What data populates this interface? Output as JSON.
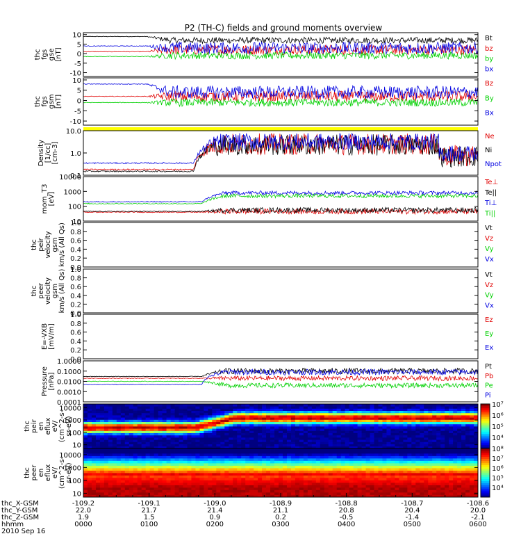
{
  "title": "P2 (TH-C) fields and ground moments overview",
  "colors": {
    "black": "#000000",
    "red": "#e00000",
    "green": "#00d000",
    "blue": "#0000e0",
    "yellow": "#ffff00"
  },
  "chart_data": [
    {
      "type": "line",
      "panel": "fgs-gse",
      "ylabel": [
        "thc",
        "fgs",
        "gse",
        "[nT]"
      ],
      "ylim": [
        -12,
        11
      ],
      "y_ticks": [
        "10",
        "5",
        "0",
        "-5",
        "-10"
      ],
      "y_tick_values": [
        10,
        5,
        0,
        -5,
        -10
      ],
      "series": [
        {
          "name": "Bt",
          "color": "black",
          "start": 9,
          "end": 7,
          "transition": 0.16,
          "noise": 3.0
        },
        {
          "name": "bz",
          "color": "red",
          "start": 1,
          "end": 2,
          "transition": 0.16,
          "noise": 5.0
        },
        {
          "name": "by",
          "color": "green",
          "start": -1.5,
          "end": -1,
          "transition": 0.16,
          "noise": 3.5
        },
        {
          "name": "bx",
          "color": "blue",
          "start": 4,
          "end": 3,
          "transition": 0.16,
          "noise": 6.0
        }
      ]
    },
    {
      "type": "line",
      "panel": "fgs-gsm",
      "ylabel": [
        "thc",
        "fgs",
        "gsm",
        "[nT]"
      ],
      "ylim": [
        -12,
        11
      ],
      "y_ticks": [
        "10",
        "5",
        "0",
        "-5",
        "-10"
      ],
      "y_tick_values": [
        10,
        5,
        0,
        -5,
        -10
      ],
      "series": [
        {
          "name": "Bz",
          "color": "red",
          "start": 2,
          "end": 2,
          "transition": 0.16,
          "noise": 5.0
        },
        {
          "name": "By",
          "color": "green",
          "start": -1,
          "end": -1,
          "transition": 0.16,
          "noise": 3.5
        },
        {
          "name": "Bx",
          "color": "blue",
          "start": 8,
          "end": 4,
          "transition": 0.16,
          "noise": 6.0
        }
      ]
    },
    {
      "type": "line",
      "panel": "density",
      "ylabel": [
        "Density",
        "[1/cc]",
        "[cm-3]"
      ],
      "scale": "log",
      "ylim": [
        0.1,
        10
      ],
      "y_ticks": [
        "10.0",
        "1.0",
        "0.1"
      ],
      "y_tick_values": [
        10,
        1,
        0.1
      ],
      "series": [
        {
          "name": "Ne",
          "color": "red",
          "start": 0.18,
          "end": 2.5,
          "transition": 0.28,
          "noise": 0.45
        },
        {
          "name": "Ni",
          "color": "black",
          "start": 0.15,
          "end": 2.3,
          "transition": 0.28,
          "noise": 0.45
        },
        {
          "name": "Npot",
          "color": "blue",
          "start": 0.35,
          "end": 3.2,
          "transition": 0.28,
          "noise": 0.35
        }
      ]
    },
    {
      "type": "line",
      "panel": "temperature",
      "ylabel": [
        "mom_T3",
        "[eV]"
      ],
      "scale": "log",
      "ylim": [
        10,
        10000
      ],
      "y_ticks": [
        "10000",
        "1000",
        "100",
        "10"
      ],
      "y_tick_values": [
        10000,
        1000,
        100,
        10
      ],
      "series": [
        {
          "name": "Te⊥",
          "color": "red",
          "start": 40,
          "end": 45,
          "transition": 0.3,
          "noise": 0.15
        },
        {
          "name": "Te||",
          "color": "black",
          "start": 45,
          "end": 55,
          "transition": 0.3,
          "noise": 0.15
        },
        {
          "name": "Ti⊥",
          "color": "blue",
          "start": 200,
          "end": 800,
          "transition": 0.3,
          "noise": 0.1
        },
        {
          "name": "Ti||",
          "color": "green",
          "start": 150,
          "end": 500,
          "transition": 0.3,
          "noise": 0.1
        }
      ]
    },
    {
      "type": "line",
      "panel": "peir-velocity",
      "ylabel": [
        "thc",
        "peir",
        "velocity",
        "gsm",
        "km/s (All Qs)"
      ],
      "ylim": [
        0,
        1
      ],
      "y_ticks": [
        "1.0",
        "0.8",
        "0.6",
        "0.4",
        "0.2",
        "0.0"
      ],
      "y_tick_values": [
        1,
        0.8,
        0.6,
        0.4,
        0.2,
        0
      ],
      "series": [
        {
          "name": "Vt",
          "color": "black"
        },
        {
          "name": "Vz",
          "color": "red"
        },
        {
          "name": "Vy",
          "color": "green"
        },
        {
          "name": "Vx",
          "color": "blue"
        }
      ]
    },
    {
      "type": "line",
      "panel": "peer-velocity",
      "ylabel": [
        "thc",
        "peer",
        "velocity",
        "gsm",
        "km/s (All Qs)"
      ],
      "ylim": [
        0,
        1
      ],
      "y_ticks": [
        "1.0",
        "0.8",
        "0.6",
        "0.4",
        "0.2",
        "0.0"
      ],
      "y_tick_values": [
        1,
        0.8,
        0.6,
        0.4,
        0.2,
        0
      ],
      "series": [
        {
          "name": "Vt",
          "color": "black"
        },
        {
          "name": "Vz",
          "color": "red"
        },
        {
          "name": "Vy",
          "color": "green"
        },
        {
          "name": "Vx",
          "color": "blue"
        }
      ]
    },
    {
      "type": "line",
      "panel": "e-field",
      "ylabel": [
        "E=-VXB",
        "[mV/m]"
      ],
      "ylim": [
        0,
        1
      ],
      "y_ticks": [
        "1.0",
        "0.8",
        "0.6",
        "0.4",
        "0.2",
        "0.0"
      ],
      "y_tick_values": [
        1,
        0.8,
        0.6,
        0.4,
        0.2,
        0
      ],
      "series": [
        {
          "name": "Ez",
          "color": "red"
        },
        {
          "name": "Ey",
          "color": "green"
        },
        {
          "name": "Ex",
          "color": "blue"
        }
      ]
    },
    {
      "type": "line",
      "panel": "pressure",
      "ylabel": [
        "Pressure",
        "[nPa]"
      ],
      "scale": "log",
      "ylim": [
        0.0001,
        1
      ],
      "y_ticks": [
        "1.0000",
        "0.1000",
        "0.0100",
        "0.0010",
        "0.0001"
      ],
      "y_tick_values": [
        1,
        0.1,
        0.01,
        0.001,
        0.0001
      ],
      "series": [
        {
          "name": "Pt",
          "color": "black",
          "start": 0.03,
          "end": 0.1,
          "transition": 0.3,
          "noise": 0.25
        },
        {
          "name": "Pb",
          "color": "red",
          "start": 0.02,
          "end": 0.02,
          "transition": 0.3,
          "noise": 0.2
        },
        {
          "name": "Pe",
          "color": "green",
          "start": 0.01,
          "end": 0.004,
          "transition": 0.3,
          "noise": 0.2
        },
        {
          "name": "Pi",
          "color": "blue",
          "start": 0.005,
          "end": 0.08,
          "transition": 0.3,
          "noise": 0.25
        }
      ]
    },
    {
      "type": "heatmap",
      "panel": "peir-eflux",
      "ylabel": [
        "thc",
        "peir",
        "en",
        "eflux",
        "eV/",
        "(cm^2-s-",
        "sr-eV)"
      ],
      "scale": "log",
      "ylim": [
        5,
        20000
      ],
      "y_ticks": [
        "10000",
        "1000",
        "100",
        "10"
      ],
      "y_tick_values": [
        10000,
        1000,
        100,
        10
      ],
      "colorbar_ticks": [
        "10⁷",
        "10⁶",
        "10⁵",
        "10⁴"
      ],
      "colorbar_range": [
        1000,
        10000000
      ],
      "peak_start": 250,
      "peak_end": 1500
    },
    {
      "type": "heatmap",
      "panel": "peer-eflux",
      "ylabel": [
        "thc",
        "peer",
        "en",
        "eflux",
        "eV/",
        "(cm^2-s-",
        "sr-eV)"
      ],
      "scale": "log",
      "ylim": [
        5,
        30000
      ],
      "y_ticks": [
        "10000",
        "1000",
        "100",
        "10"
      ],
      "y_tick_values": [
        10000,
        1000,
        100,
        10
      ],
      "colorbar_ticks": [
        "10⁸",
        "10⁷",
        "10⁶",
        "10⁵",
        "10⁴"
      ],
      "colorbar_range": [
        1000,
        100000000
      ],
      "peak_start": 30,
      "peak_end": 30
    }
  ],
  "x_axis": {
    "row_labels": [
      "thc_X-GSM",
      "thc_Y-GSM",
      "thc_Z-GSM",
      "hhmm",
      "2010 Sep 16"
    ],
    "ticks": [
      {
        "x": "-109.2",
        "y": "22.0",
        "z": "1.9",
        "hhmm": "0000"
      },
      {
        "x": "-109.1",
        "y": "21.7",
        "z": "1.5",
        "hhmm": "0100"
      },
      {
        "x": "-109.0",
        "y": "21.4",
        "z": "0.9",
        "hhmm": "0200"
      },
      {
        "x": "-108.9",
        "y": "21.1",
        "z": "0.2",
        "hhmm": "0300"
      },
      {
        "x": "-108.8",
        "y": "20.8",
        "z": "-0.5",
        "hhmm": "0400"
      },
      {
        "x": "-108.7",
        "y": "20.4",
        "z": "-1.4",
        "hhmm": "0500"
      },
      {
        "x": "-108.6",
        "y": "20.0",
        "z": "-2.1",
        "hhmm": "0600"
      }
    ],
    "time_values_hours": [
      0,
      1,
      2,
      3,
      4,
      5,
      6
    ]
  }
}
